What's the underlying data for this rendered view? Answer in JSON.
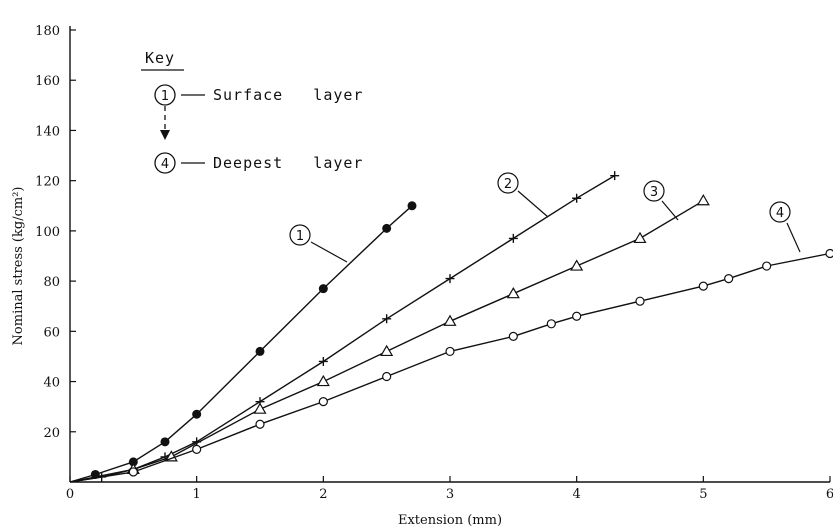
{
  "chart_data": {
    "type": "line",
    "xlabel": "Extension (mm)",
    "ylabel": "Nominal stress (kg/cm²)",
    "xlim": [
      0,
      6
    ],
    "ylim": [
      0,
      180
    ],
    "x_ticks": [
      0,
      1,
      2,
      3,
      4,
      5,
      6
    ],
    "y_ticks": [
      20,
      40,
      60,
      80,
      100,
      120,
      140,
      160,
      180
    ],
    "grid": false,
    "key": {
      "title": "Key",
      "entries": [
        {
          "marker": "1",
          "label": "Surface   layer"
        },
        {
          "marker": "4",
          "label": "Deepest   layer"
        }
      ]
    },
    "series": [
      {
        "name": "1",
        "marker": "filled-circle",
        "x": [
          0,
          0.2,
          0.5,
          0.75,
          1.0,
          1.5,
          2.0,
          2.5,
          2.7
        ],
        "y": [
          0,
          3,
          8,
          16,
          27,
          52,
          77,
          101,
          110
        ]
      },
      {
        "name": "2",
        "marker": "plus",
        "x": [
          0,
          0.25,
          0.5,
          0.75,
          1.0,
          1.5,
          2.0,
          2.5,
          3.0,
          3.5,
          4.0,
          4.3
        ],
        "y": [
          0,
          2,
          5,
          10,
          16,
          32,
          48,
          65,
          81,
          97,
          113,
          122
        ]
      },
      {
        "name": "3",
        "marker": "triangle",
        "x": [
          0,
          0.5,
          0.8,
          1.5,
          2.0,
          2.5,
          3.0,
          3.5,
          4.0,
          4.5,
          5.0
        ],
        "y": [
          0,
          5,
          10,
          29,
          40,
          52,
          64,
          75,
          86,
          97,
          112
        ]
      },
      {
        "name": "4",
        "marker": "open-circle",
        "x": [
          0,
          0.5,
          1.0,
          1.5,
          2.0,
          2.5,
          3.0,
          3.5,
          3.8,
          4.0,
          4.5,
          5.0,
          5.2,
          5.5,
          6.0
        ],
        "y": [
          0,
          4,
          13,
          23,
          32,
          42,
          52,
          58,
          63,
          66,
          72,
          78,
          81,
          86,
          91
        ]
      }
    ]
  }
}
